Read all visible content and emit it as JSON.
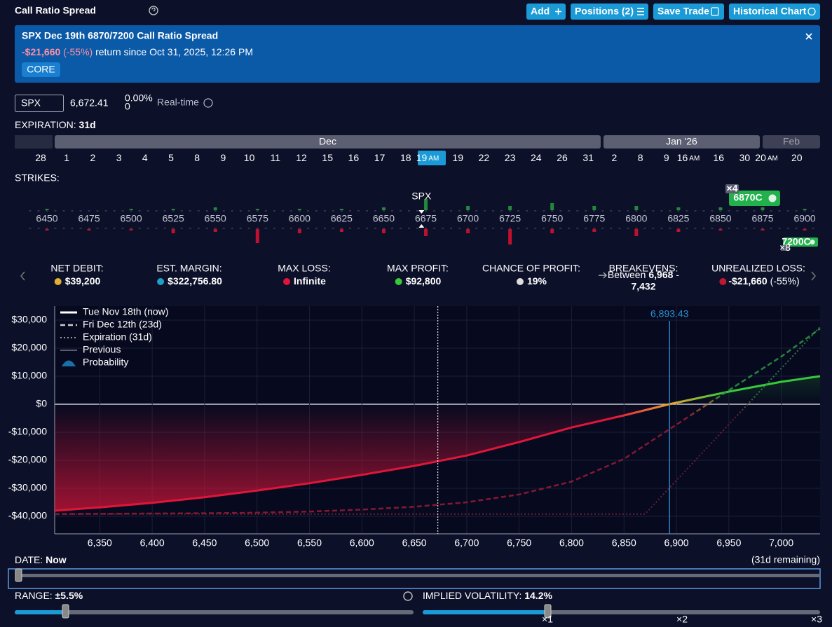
{
  "header": {
    "title": "Call Ratio Spread",
    "buttons": [
      "Add",
      "Positions (2)",
      "Save Trade",
      "Historical Chart"
    ]
  },
  "banner": {
    "title": "SPX Dec 19th 6870/7200 Call Ratio Spread",
    "pnl": "-$21,660",
    "pnl_pct": "(-55%)",
    "since": "return since Oct 31, 2025, 12:26 PM",
    "tag": "CORE"
  },
  "quote": {
    "symbol": "SPX",
    "price": "6,672.41",
    "change_pct": "0.00%",
    "change": "0",
    "feed": "Real-time"
  },
  "expiration": {
    "label": "EXPIRATION:",
    "value": "31d",
    "months": [
      "Dec",
      "Jan '26",
      "Feb"
    ],
    "days": [
      {
        "d": "28"
      },
      {
        "d": "1"
      },
      {
        "d": "2"
      },
      {
        "d": "3"
      },
      {
        "d": "4"
      },
      {
        "d": "5"
      },
      {
        "d": "8"
      },
      {
        "d": "9"
      },
      {
        "d": "10"
      },
      {
        "d": "11"
      },
      {
        "d": "12"
      },
      {
        "d": "15"
      },
      {
        "d": "16"
      },
      {
        "d": "17"
      },
      {
        "d": "18"
      },
      {
        "d": "19",
        "am": "AM",
        "selected": true
      },
      {
        "d": "19"
      },
      {
        "d": "22"
      },
      {
        "d": "23"
      },
      {
        "d": "24"
      },
      {
        "d": "26"
      },
      {
        "d": "31"
      },
      {
        "d": "2"
      },
      {
        "d": "8"
      },
      {
        "d": "9"
      },
      {
        "d": "16",
        "am": "AM"
      },
      {
        "d": "16"
      },
      {
        "d": "30"
      },
      {
        "d": "20",
        "am": "AM"
      },
      {
        "d": "20"
      }
    ]
  },
  "strikes": {
    "label": "STRIKES:",
    "underlying": "SPX",
    "spot": 6672.41,
    "strikes": [
      6450,
      6475,
      6500,
      6525,
      6550,
      6575,
      6600,
      6625,
      6650,
      6675,
      6700,
      6725,
      6750,
      6775,
      6800,
      6825,
      6850,
      6875,
      6900
    ],
    "call_interest": [
      1,
      0,
      1,
      1,
      2,
      1,
      1,
      1,
      2,
      8,
      3,
      3,
      5,
      3,
      3,
      2,
      2,
      2,
      1
    ],
    "put_interest": [
      1,
      1,
      1,
      3,
      2,
      10,
      3,
      2,
      3,
      5,
      3,
      11,
      3,
      2,
      5,
      2,
      1,
      1,
      1
    ],
    "positions": [
      {
        "label": "6870C",
        "qty": "×4",
        "strike": 6870
      },
      {
        "label": "7200C",
        "qty": "×8",
        "strike": 7200
      }
    ]
  },
  "stats": [
    {
      "label": "NET DEBIT:",
      "value": "$39,200"
    },
    {
      "label": "EST. MARGIN:",
      "value": "$322,756.80"
    },
    {
      "label": "MAX LOSS:",
      "value": "Infinite"
    },
    {
      "label": "MAX PROFIT:",
      "value": "$92,800"
    },
    {
      "label": "CHANCE OF PROFIT:",
      "value": "19%"
    },
    {
      "label": "BREAKEVENS:",
      "value": "Between",
      "low": "6,968",
      "sep": "-",
      "high": "7,432"
    },
    {
      "label": "UNREALIZED LOSS:",
      "value": "-$21,660",
      "note": "(-55%)"
    }
  ],
  "chart_data": {
    "type": "line",
    "xlim": [
      6307,
      7037
    ],
    "ylim": [
      -46250,
      35000
    ],
    "xticks": [
      {
        "value": 6350,
        "label": "6,350"
      },
      {
        "value": 6400,
        "label": "6,400"
      },
      {
        "value": 6450,
        "label": "6,450"
      },
      {
        "value": 6500,
        "label": "6,500"
      },
      {
        "value": 6550,
        "label": "6,550"
      },
      {
        "value": 6600,
        "label": "6,600"
      },
      {
        "value": 6650,
        "label": "6,650"
      },
      {
        "value": 6700,
        "label": "6,700"
      },
      {
        "value": 6750,
        "label": "6,750"
      },
      {
        "value": 6800,
        "label": "6,800"
      },
      {
        "value": 6850,
        "label": "6,850"
      },
      {
        "value": 6900,
        "label": "6,900"
      },
      {
        "value": 6950,
        "label": "6,950"
      },
      {
        "value": 7000,
        "label": "7,000"
      }
    ],
    "yticks": [
      {
        "value": -40000,
        "label": "-$40,000"
      },
      {
        "value": -30000,
        "label": "-$30,000"
      },
      {
        "value": -20000,
        "label": "-$20,000"
      },
      {
        "value": -10000,
        "label": "-$10,000"
      },
      {
        "value": 0,
        "label": "$0"
      },
      {
        "value": 10000,
        "label": "$10,000"
      },
      {
        "value": 20000,
        "label": "$20,000"
      },
      {
        "value": 30000,
        "label": "$30,000"
      }
    ],
    "grid": true,
    "legend": "top-left",
    "spot": 6672.41,
    "marker": {
      "value": 6893.43,
      "label": "6,893.43",
      "color": "#2a8fd0"
    },
    "series": [
      {
        "name": "Tue Nov 18th (now)",
        "style": "solid",
        "colors": [
          "#e0153a",
          "#f0a030",
          "#36c93a"
        ],
        "x": [
          6307,
          6350,
          6400,
          6450,
          6500,
          6550,
          6600,
          6650,
          6700,
          6750,
          6800,
          6850,
          6893,
          6950,
          7000,
          7037
        ],
        "values": [
          -38000,
          -36800,
          -35200,
          -33200,
          -30800,
          -28200,
          -25200,
          -22000,
          -18300,
          -13500,
          -8300,
          -4000,
          0,
          4500,
          8000,
          10000
        ]
      },
      {
        "name": "Fri Dec 12th (23d)",
        "style": "dashed",
        "colors": [
          "#9a1a35",
          "#a07030",
          "#2a9a40"
        ],
        "x": [
          6307,
          6350,
          6400,
          6450,
          6500,
          6550,
          6600,
          6650,
          6700,
          6750,
          6800,
          6850,
          6893,
          6950,
          7000,
          7037
        ],
        "values": [
          -39200,
          -39100,
          -39000,
          -38900,
          -38700,
          -38300,
          -37600,
          -36600,
          -35000,
          -32200,
          -27600,
          -19500,
          -9000,
          5000,
          17000,
          27000
        ]
      },
      {
        "name": "Expiration (31d)",
        "style": "dotted",
        "colors": [
          "#7a2035",
          "#6a6040",
          "#3a8a45"
        ],
        "x": [
          6307,
          6870,
          6968,
          7037
        ],
        "values": [
          -39200,
          -39200,
          0,
          27600
        ]
      }
    ],
    "legend_extra": [
      "Previous",
      "Probability"
    ]
  },
  "controls": {
    "date_label": "DATE:",
    "date_value": "Now",
    "remaining": "(31d remaining)",
    "range_label": "RANGE:",
    "range_value": "±5.5%",
    "iv_label": "IMPLIED VOLATILITY:",
    "iv_value": "14.2%",
    "multipliers": [
      "×1",
      "×2",
      "×3"
    ]
  }
}
